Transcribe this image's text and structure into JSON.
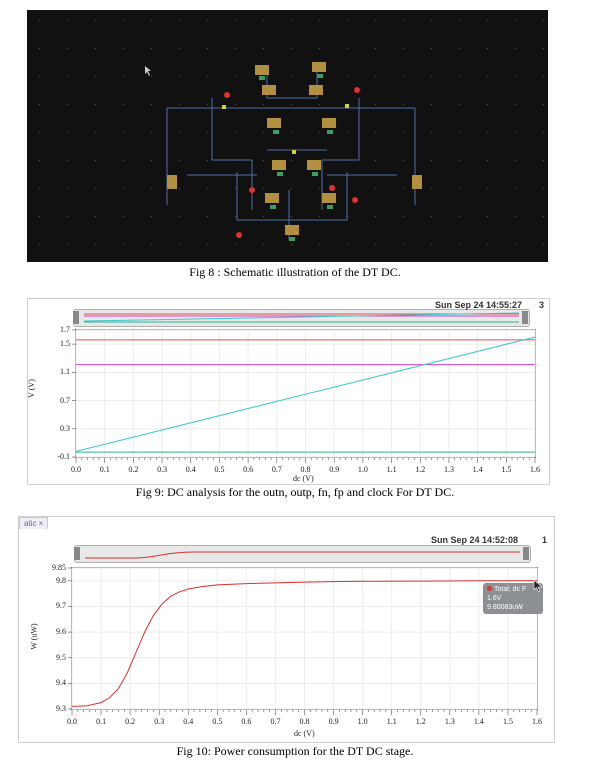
{
  "fig8": {
    "caption": "Fig 8 : Schematic illustration of the DT DC."
  },
  "fig9": {
    "caption": "Fig 9: DC analysis for the outn, outp, fn, fp and clock For DT DC.",
    "timestamp": "Sun Sep 24 14:55:27",
    "page_number": "3",
    "colors": {
      "red": "#e05050",
      "magenta": "#d040d0",
      "cyan": "#40c8d0",
      "teal": "#30b090"
    }
  },
  "fig10": {
    "caption": "Fig 10: Power consumption for the DT DC stage.",
    "timestamp": "Sun Sep 24 14:52:08",
    "page_number": "1",
    "tab_label": "atic ×",
    "tooltip": {
      "line1": "Total; dc F",
      "line2": "1.6V",
      "line3": "9.80083uW"
    },
    "colors": {
      "trace": "#d83030"
    }
  },
  "chart_data": [
    {
      "type": "line",
      "xlabel": "dc (V)",
      "ylabel": "V (V)",
      "xlim": [
        0.0,
        1.6
      ],
      "ylim": [
        -0.1,
        1.7
      ],
      "x_ticks": [
        "0.0",
        "0.1",
        "0.2",
        "0.3",
        "0.4",
        "0.5",
        "0.6",
        "0.7",
        "0.8",
        "0.9",
        "1.0",
        "1.1",
        "1.2",
        "1.3",
        "1.4",
        "1.5",
        "1.6"
      ],
      "y_ticks": [
        "-0.1",
        "0.3",
        "0.7",
        "1.1",
        "1.5",
        "1.7"
      ],
      "series": [
        {
          "color": "#e05050",
          "x": [
            0.0,
            1.6
          ],
          "y": [
            1.56,
            1.56
          ]
        },
        {
          "color": "#d040d0",
          "x": [
            0.0,
            1.6
          ],
          "y": [
            1.21,
            1.21
          ]
        },
        {
          "color": "#40c8d0",
          "x": [
            0.0,
            1.6
          ],
          "y": [
            -0.02,
            1.6
          ]
        },
        {
          "color": "#30b090",
          "x": [
            0.0,
            1.6
          ],
          "y": [
            -0.03,
            -0.03
          ]
        }
      ]
    },
    {
      "type": "line",
      "xlabel": "dc (V)",
      "ylabel": "W (uW)",
      "xlim": [
        0.0,
        1.6
      ],
      "ylim": [
        9.3,
        9.85
      ],
      "x_ticks": [
        "0.0",
        "0.1",
        "0.2",
        "0.3",
        "0.4",
        "0.5",
        "0.6",
        "0.7",
        "0.8",
        "0.9",
        "1.0",
        "1.1",
        "1.2",
        "1.3",
        "1.4",
        "1.5",
        "1.6"
      ],
      "y_ticks": [
        "9.3",
        "9.4",
        "9.5",
        "9.6",
        "9.7",
        "9.8",
        "9.85"
      ],
      "series": [
        {
          "color": "#d83030",
          "x": [
            0.0,
            0.05,
            0.1,
            0.13,
            0.16,
            0.19,
            0.22,
            0.25,
            0.28,
            0.31,
            0.34,
            0.37,
            0.4,
            0.45,
            0.5,
            0.6,
            0.7,
            0.8,
            0.9,
            1.0,
            1.2,
            1.4,
            1.6
          ],
          "y": [
            9.31,
            9.312,
            9.325,
            9.345,
            9.38,
            9.44,
            9.52,
            9.6,
            9.665,
            9.71,
            9.74,
            9.757,
            9.768,
            9.778,
            9.784,
            9.789,
            9.792,
            9.795,
            9.797,
            9.798,
            9.799,
            9.8,
            9.801
          ]
        }
      ]
    }
  ]
}
